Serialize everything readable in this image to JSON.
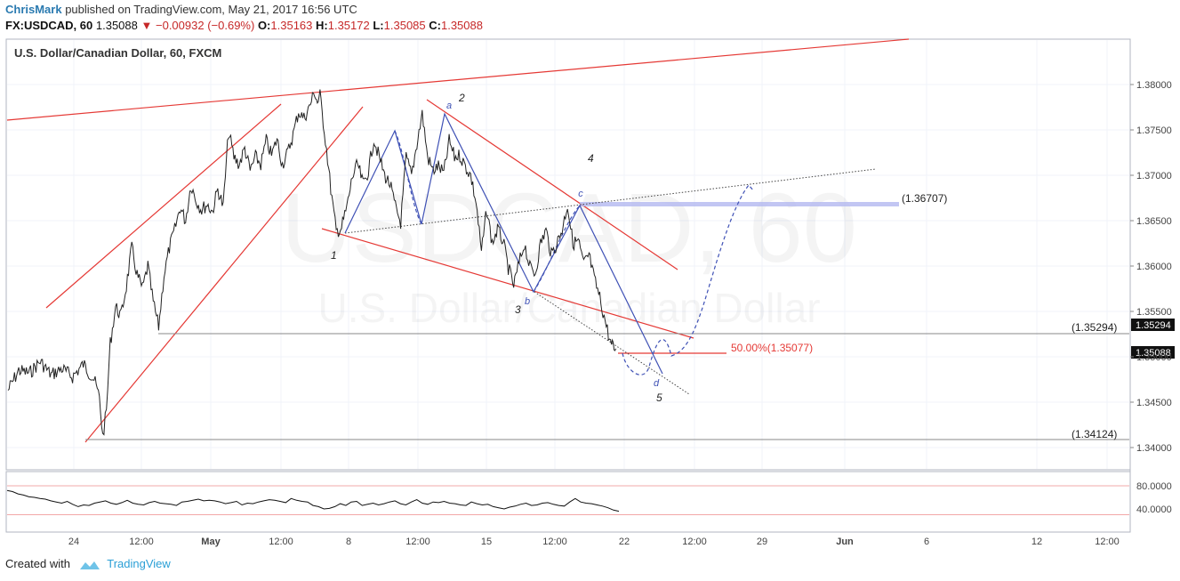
{
  "header": {
    "author": "ChrisMark",
    "published": "published on TradingView.com, May 21, 2017 16:56 UTC",
    "symbol": "FX:USDCAD, 60",
    "last": "1.35088",
    "change": "−0.00932 (−0.69%)",
    "o_label": "O:",
    "o": "1.35163",
    "h_label": "H:",
    "h": "1.35172",
    "l_label": "L:",
    "l": "1.35085",
    "c_label": "C:",
    "c": "1.35088"
  },
  "chart_data": {
    "type": "line",
    "title": "U.S. Dollar/Canadian Dollar, 60, FXCM",
    "watermark_symbol": "USDCAD, 60",
    "watermark_name": "U.S. Dollar/Canadian Dollar",
    "y_ticks": [
      "1.38000",
      "1.37500",
      "1.37000",
      "1.36500",
      "1.36000",
      "1.35500",
      "1.35000",
      "1.34500",
      "1.34000"
    ],
    "ylim": [
      1.3396,
      1.3822
    ],
    "x_ticks": [
      "24",
      "12:00",
      "May",
      "12:00",
      "8",
      "12:00",
      "15",
      "12:00",
      "22",
      "12:00",
      "29",
      "Jun",
      "6",
      "12",
      "12:00"
    ],
    "price_series": [
      {
        "x": 0,
        "y": 1.3463
      },
      {
        "x": 2,
        "y": 1.3485
      },
      {
        "x": 4,
        "y": 1.3482
      },
      {
        "x": 6,
        "y": 1.3495
      },
      {
        "x": 8,
        "y": 1.348
      },
      {
        "x": 10,
        "y": 1.3487
      },
      {
        "x": 12,
        "y": 1.3478
      },
      {
        "x": 14,
        "y": 1.3492
      },
      {
        "x": 16,
        "y": 1.3475
      },
      {
        "x": 17,
        "y": 1.3455
      },
      {
        "x": 17.6,
        "y": 1.3412
      },
      {
        "x": 18.3,
        "y": 1.344
      },
      {
        "x": 19,
        "y": 1.3515
      },
      {
        "x": 20,
        "y": 1.3555
      },
      {
        "x": 21,
        "y": 1.3545
      },
      {
        "x": 22,
        "y": 1.3578
      },
      {
        "x": 23,
        "y": 1.362
      },
      {
        "x": 24,
        "y": 1.359
      },
      {
        "x": 25,
        "y": 1.3575
      },
      {
        "x": 26,
        "y": 1.36
      },
      {
        "x": 27,
        "y": 1.356
      },
      {
        "x": 28,
        "y": 1.3533
      },
      {
        "x": 29,
        "y": 1.359
      },
      {
        "x": 30,
        "y": 1.362
      },
      {
        "x": 31,
        "y": 1.364
      },
      {
        "x": 32,
        "y": 1.3665
      },
      {
        "x": 33,
        "y": 1.365
      },
      {
        "x": 34,
        "y": 1.369
      },
      {
        "x": 35,
        "y": 1.3672
      },
      {
        "x": 36,
        "y": 1.3662
      },
      {
        "x": 37,
        "y": 1.3668
      },
      {
        "x": 38,
        "y": 1.366
      },
      {
        "x": 39,
        "y": 1.3685
      },
      {
        "x": 40,
        "y": 1.3665
      },
      {
        "x": 41,
        "y": 1.3748
      },
      {
        "x": 42,
        "y": 1.372
      },
      {
        "x": 43,
        "y": 1.3712
      },
      {
        "x": 44,
        "y": 1.373
      },
      {
        "x": 45,
        "y": 1.3705
      },
      {
        "x": 46,
        "y": 1.372
      },
      {
        "x": 47,
        "y": 1.3712
      },
      {
        "x": 48,
        "y": 1.3738
      },
      {
        "x": 49,
        "y": 1.3722
      },
      {
        "x": 50,
        "y": 1.374
      },
      {
        "x": 51,
        "y": 1.3712
      },
      {
        "x": 52,
        "y": 1.3725
      },
      {
        "x": 53,
        "y": 1.3745
      },
      {
        "x": 54,
        "y": 1.377
      },
      {
        "x": 55,
        "y": 1.3763
      },
      {
        "x": 56,
        "y": 1.3775
      },
      {
        "x": 57,
        "y": 1.3792
      },
      {
        "x": 57.5,
        "y": 1.378
      },
      {
        "x": 58,
        "y": 1.3788
      },
      {
        "x": 59,
        "y": 1.374
      },
      {
        "x": 60,
        "y": 1.3685
      },
      {
        "x": 61,
        "y": 1.3638
      },
      {
        "x": 62,
        "y": 1.3642
      },
      {
        "x": 63,
        "y": 1.3665
      },
      {
        "x": 64,
        "y": 1.3698
      },
      {
        "x": 65,
        "y": 1.3712
      },
      {
        "x": 66,
        "y": 1.369
      },
      {
        "x": 67,
        "y": 1.3705
      },
      {
        "x": 68,
        "y": 1.374
      },
      {
        "x": 69,
        "y": 1.372
      },
      {
        "x": 70,
        "y": 1.37
      },
      {
        "x": 71,
        "y": 1.369
      },
      {
        "x": 72,
        "y": 1.3665
      },
      {
        "x": 73,
        "y": 1.3648
      },
      {
        "x": 74,
        "y": 1.372
      },
      {
        "x": 75,
        "y": 1.37
      },
      {
        "x": 76,
        "y": 1.3735
      },
      {
        "x": 77,
        "y": 1.3768
      },
      {
        "x": 78,
        "y": 1.372
      },
      {
        "x": 79,
        "y": 1.3705
      },
      {
        "x": 80,
        "y": 1.371
      },
      {
        "x": 81,
        "y": 1.3702
      },
      {
        "x": 82,
        "y": 1.3738
      },
      {
        "x": 83,
        "y": 1.372
      },
      {
        "x": 84,
        "y": 1.3722
      },
      {
        "x": 85,
        "y": 1.371
      },
      {
        "x": 86,
        "y": 1.37
      },
      {
        "x": 87,
        "y": 1.367
      },
      {
        "x": 88,
        "y": 1.3615
      },
      {
        "x": 89,
        "y": 1.3662
      },
      {
        "x": 90,
        "y": 1.3625
      },
      {
        "x": 91,
        "y": 1.364
      },
      {
        "x": 92,
        "y": 1.3628
      },
      {
        "x": 93,
        "y": 1.3598
      },
      {
        "x": 94,
        "y": 1.3578
      },
      {
        "x": 95,
        "y": 1.3603
      },
      {
        "x": 96,
        "y": 1.3625
      },
      {
        "x": 97,
        "y": 1.3598
      },
      {
        "x": 98,
        "y": 1.3592
      },
      {
        "x": 99,
        "y": 1.3625
      },
      {
        "x": 100,
        "y": 1.364
      },
      {
        "x": 101,
        "y": 1.3612
      },
      {
        "x": 102,
        "y": 1.3625
      },
      {
        "x": 103,
        "y": 1.364
      },
      {
        "x": 104,
        "y": 1.3668
      },
      {
        "x": 105,
        "y": 1.3625
      },
      {
        "x": 106,
        "y": 1.3628
      },
      {
        "x": 107,
        "y": 1.3602
      },
      {
        "x": 108,
        "y": 1.3612
      },
      {
        "x": 109,
        "y": 1.3585
      },
      {
        "x": 110,
        "y": 1.3565
      },
      {
        "x": 111,
        "y": 1.354
      },
      {
        "x": 112,
        "y": 1.3515
      },
      {
        "x": 112.5,
        "y": 1.351
      },
      {
        "x": 113,
        "y": 1.3509
      }
    ],
    "indicator": {
      "y_ticks": [
        "80.0000",
        "40.0000"
      ],
      "ylim": [
        20,
        95
      ],
      "levels": [
        80,
        30
      ],
      "values": [
        72,
        70,
        66,
        64,
        61,
        60,
        58,
        57,
        54,
        52,
        50,
        53,
        48,
        44,
        47,
        46,
        50,
        52,
        54,
        50,
        48,
        51,
        55,
        50,
        48,
        47,
        51,
        53,
        50,
        49,
        48,
        46,
        52,
        53,
        55,
        57,
        54,
        55,
        54,
        52,
        49,
        51,
        53,
        47,
        50,
        49,
        52,
        54,
        56,
        55,
        53,
        51,
        58,
        55,
        53,
        52,
        46,
        44,
        40,
        41,
        44,
        49,
        46,
        52,
        53,
        46,
        48,
        50,
        47,
        49,
        52,
        54,
        49,
        47,
        52,
        56,
        50,
        48,
        52,
        51,
        53,
        50,
        49,
        47,
        46,
        52,
        49,
        47,
        48,
        44,
        42,
        40,
        43,
        45,
        48,
        50,
        46,
        47,
        50,
        51,
        48,
        46,
        45,
        52,
        58,
        52,
        50,
        49,
        47,
        45,
        42,
        38,
        36
      ]
    },
    "annotations": {
      "price_labels": [
        "(1.36707)",
        "(1.35294)",
        "(1.34124)"
      ],
      "fib_label": "50.00%(1.35077)",
      "axis_marker_1": "1.35294",
      "axis_marker_2": "1.35088",
      "wave_labels": [
        "1",
        "2",
        "3",
        "4",
        "5"
      ],
      "sub_wave_labels": [
        "a",
        "b",
        "c",
        "d"
      ]
    }
  },
  "footer": {
    "created_with": "Created with",
    "brand": "TradingView"
  },
  "colors": {
    "trendline": "#e53935",
    "wave": "#3f51b5",
    "price": "#222222",
    "grid": "#f0f3fa",
    "axis_marker": "#111111"
  }
}
